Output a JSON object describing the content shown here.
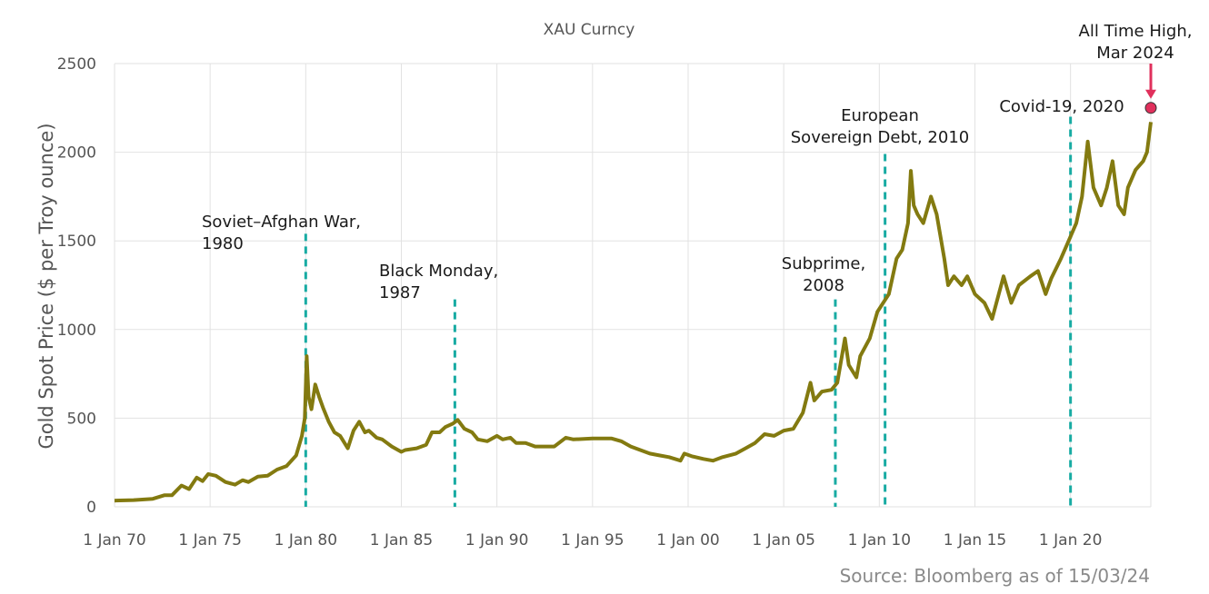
{
  "chart_data": {
    "type": "line",
    "title": "XAU Curncy",
    "ylabel": "Gold Spot Price ($ per Troy ounce)",
    "xlabel": "",
    "ylim": [
      0,
      2500
    ],
    "xlim": [
      1970.0,
      2024.2
    ],
    "grid": true,
    "y_ticks": [
      0,
      500,
      1000,
      1500,
      2000,
      2500
    ],
    "x_ticks": [
      {
        "label": "1 Jan 70",
        "value": 1970
      },
      {
        "label": "1 Jan 75",
        "value": 1975
      },
      {
        "label": "1 Jan 80",
        "value": 1980
      },
      {
        "label": "1 Jan 85",
        "value": 1985
      },
      {
        "label": "1 Jan 90",
        "value": 1990
      },
      {
        "label": "1 Jan 95",
        "value": 1995
      },
      {
        "label": "1 Jan 00",
        "value": 2000
      },
      {
        "label": "1 Jan 05",
        "value": 2005
      },
      {
        "label": "1 Jan 10",
        "value": 2010
      },
      {
        "label": "1 Jan 15",
        "value": 2015
      },
      {
        "label": "1 Jan 20",
        "value": 2020
      }
    ],
    "series": [
      {
        "name": "XAU Curncy",
        "color": "#837A10",
        "x": [
          1970.0,
          1971.0,
          1972.0,
          1972.6,
          1973.0,
          1973.5,
          1973.9,
          1974.3,
          1974.6,
          1974.9,
          1975.3,
          1975.8,
          1976.3,
          1976.7,
          1977.0,
          1977.5,
          1978.0,
          1978.5,
          1979.0,
          1979.5,
          1979.8,
          1979.95,
          1980.05,
          1980.15,
          1980.3,
          1980.5,
          1980.7,
          1980.9,
          1981.2,
          1981.5,
          1981.8,
          1982.2,
          1982.5,
          1982.8,
          1983.1,
          1983.3,
          1983.7,
          1984.0,
          1984.5,
          1985.0,
          1985.2,
          1985.8,
          1986.3,
          1986.6,
          1987.0,
          1987.3,
          1987.7,
          1987.95,
          1988.3,
          1988.7,
          1989.0,
          1989.5,
          1990.0,
          1990.3,
          1990.7,
          1991.0,
          1991.5,
          1992.0,
          1992.5,
          1993.0,
          1993.6,
          1994.0,
          1995.0,
          1996.0,
          1996.5,
          1997.0,
          1997.5,
          1998.0,
          1998.5,
          1999.0,
          1999.6,
          1999.8,
          2000.2,
          2000.8,
          2001.3,
          2001.8,
          2002.5,
          2003.0,
          2003.5,
          2004.0,
          2004.5,
          2005.0,
          2005.5,
          2006.0,
          2006.4,
          2006.6,
          2007.0,
          2007.5,
          2007.8,
          2008.2,
          2008.4,
          2008.8,
          2009.0,
          2009.5,
          2009.9,
          2010.5,
          2010.9,
          2011.2,
          2011.5,
          2011.65,
          2011.8,
          2012.0,
          2012.3,
          2012.7,
          2013.0,
          2013.4,
          2013.6,
          2013.9,
          2014.3,
          2014.6,
          2015.0,
          2015.5,
          2015.9,
          2016.5,
          2016.9,
          2017.3,
          2017.9,
          2018.3,
          2018.7,
          2019.0,
          2019.5,
          2019.9,
          2020.3,
          2020.6,
          2020.9,
          2021.2,
          2021.6,
          2021.9,
          2022.2,
          2022.5,
          2022.8,
          2023.0,
          2023.4,
          2023.8,
          2024.0,
          2024.2
        ],
        "values": [
          35,
          38,
          45,
          65,
          65,
          120,
          100,
          165,
          145,
          185,
          175,
          140,
          125,
          150,
          140,
          170,
          175,
          210,
          230,
          290,
          400,
          500,
          850,
          620,
          550,
          690,
          620,
          560,
          480,
          420,
          400,
          330,
          430,
          480,
          420,
          430,
          390,
          380,
          340,
          310,
          320,
          330,
          350,
          420,
          420,
          450,
          470,
          490,
          440,
          420,
          380,
          370,
          400,
          380,
          390,
          360,
          360,
          340,
          340,
          340,
          390,
          380,
          385,
          385,
          370,
          340,
          320,
          300,
          290,
          280,
          260,
          300,
          285,
          270,
          260,
          280,
          300,
          330,
          360,
          410,
          400,
          430,
          440,
          530,
          700,
          600,
          650,
          660,
          700,
          950,
          800,
          730,
          850,
          950,
          1100,
          1200,
          1400,
          1450,
          1600,
          1895,
          1700,
          1650,
          1600,
          1750,
          1650,
          1400,
          1250,
          1300,
          1250,
          1300,
          1200,
          1150,
          1060,
          1300,
          1150,
          1250,
          1300,
          1330,
          1200,
          1290,
          1400,
          1500,
          1600,
          1750,
          2060,
          1800,
          1700,
          1800,
          1950,
          1700,
          1650,
          1800,
          1900,
          1950,
          2000,
          2170
        ]
      }
    ],
    "annotations": [
      {
        "x": 1980.0,
        "lines": [
          "Soviet–Afghan War,",
          "1980"
        ],
        "line_top": 1540
      },
      {
        "x": 1987.8,
        "lines": [
          "Black Monday,",
          "1987"
        ],
        "line_top": 1170
      },
      {
        "x": 2007.7,
        "lines": [
          "Subprime,",
          "2008"
        ],
        "line_top": 1170
      },
      {
        "x": 2010.3,
        "lines": [
          "European",
          "Sovereign Debt, 2010"
        ],
        "line_top": 1990
      },
      {
        "x": 2020.0,
        "lines": [
          "Covid-19, 2020"
        ],
        "line_top": 2200
      }
    ],
    "all_time_high": {
      "x": 2024.2,
      "value": 2250,
      "lines": [
        "All Time High,",
        "Mar 2024"
      ]
    },
    "source": "Source: Bloomberg as of 15/03/24"
  },
  "colors": {
    "line": "#837A10",
    "event_line": "#18ABA3",
    "ath_marker": "#E0305C",
    "grid": "#E2E2E2"
  }
}
